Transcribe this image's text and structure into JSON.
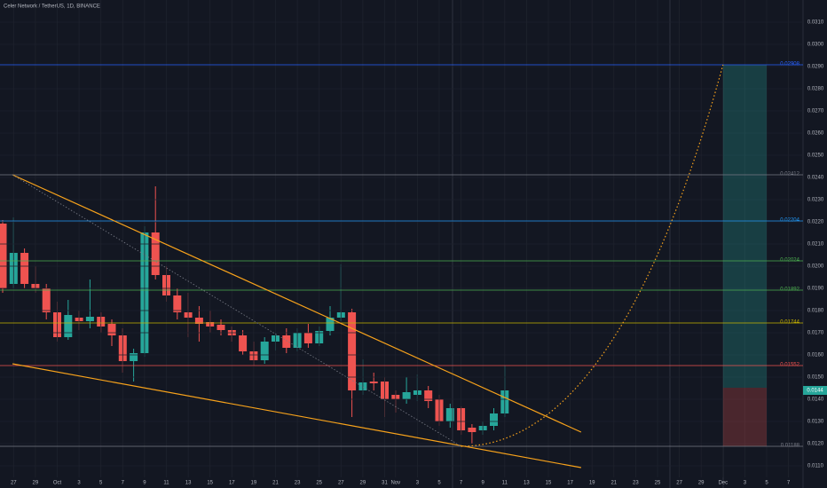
{
  "chart_data": {
    "type": "candlestick",
    "title": "Celer Network / TetherUS, 1D, BINANCE",
    "categories": [
      null,
      "27",
      null,
      "29",
      null,
      "Oct",
      null,
      "3",
      null,
      "5",
      null,
      "7",
      null,
      "9",
      null,
      "11",
      null,
      "13",
      null,
      "15",
      null,
      "17",
      null,
      "19",
      null,
      "21",
      null,
      "23",
      null,
      "25",
      null,
      "27",
      null,
      "29",
      null,
      "31",
      "Nov",
      null,
      "3",
      null,
      "5",
      null,
      "7",
      null,
      "9",
      null,
      "11",
      null,
      "13",
      null,
      "15",
      null,
      "17",
      null,
      "19",
      null,
      "21",
      null,
      "23",
      null,
      "25",
      null,
      "27",
      null,
      "29",
      null,
      "Dec",
      null,
      "3",
      null,
      "5",
      null,
      "7",
      null
    ],
    "open": [
      0.02192,
      0.0192,
      0.0206,
      0.0192,
      0.019,
      0.01792,
      0.0168,
      0.01768,
      0.01752,
      0.01772,
      0.0174,
      0.01688,
      0.01572,
      0.01608,
      0.02152,
      0.0196,
      0.01868,
      0.01792,
      0.01768,
      0.01748,
      0.01736,
      0.01712,
      0.01688,
      0.01616,
      0.01576,
      0.0166,
      0.01688,
      0.01632,
      0.017,
      0.01652,
      0.01708,
      0.01768,
      0.01792,
      0.0144,
      0.0148,
      0.0148,
      0.0142,
      0.014,
      0.0142,
      0.0144,
      0.014,
      0.013,
      0.0136,
      0.01272,
      0.0126,
      0.0128,
      0.01336,
      null,
      null,
      null,
      null,
      null,
      null,
      null,
      null,
      null,
      null,
      null,
      null,
      null,
      null,
      null,
      null,
      null,
      null,
      null,
      null,
      null,
      null,
      null,
      null,
      null,
      null,
      null
    ],
    "high": [
      0.02208,
      0.0222,
      0.0208,
      0.02,
      0.0192,
      0.0184,
      0.01848,
      0.018,
      0.0194,
      0.01792,
      0.0176,
      0.0172,
      0.01628,
      0.0218,
      0.0236,
      0.02,
      0.019,
      0.0188,
      0.0182,
      0.018,
      0.0176,
      0.01728,
      0.01712,
      0.0166,
      0.0168,
      0.017,
      0.0172,
      0.0172,
      0.0174,
      0.01728,
      0.0182,
      0.02008,
      0.01808,
      0.0158,
      0.0152,
      0.015,
      0.0144,
      0.015,
      0.01512,
      0.0146,
      0.0142,
      0.0138,
      0.01368,
      0.01288,
      0.013,
      0.0136,
      0.01552,
      null,
      null,
      null,
      null,
      null,
      null,
      null,
      null,
      null,
      null,
      null,
      null,
      null,
      null,
      null,
      null,
      null,
      null,
      null,
      null,
      null,
      null,
      null,
      null,
      null,
      null,
      null
    ],
    "low": [
      0.0188,
      0.019,
      0.019,
      0.0188,
      0.0176,
      0.0166,
      0.01668,
      0.01712,
      0.0172,
      0.017,
      0.0164,
      0.0152,
      0.0148,
      0.01592,
      0.0194,
      0.0184,
      0.0176,
      0.0168,
      0.0166,
      0.017,
      0.01688,
      0.0166,
      0.016,
      0.01552,
      0.0156,
      0.0162,
      0.01608,
      0.01616,
      0.01632,
      0.0164,
      0.01688,
      0.01752,
      0.0132,
      0.0142,
      0.0144,
      0.0132,
      0.0134,
      0.0138,
      0.01392,
      0.0136,
      0.0128,
      0.01272,
      0.0124,
      0.012,
      0.0124,
      0.0126,
      0.0132,
      null,
      null,
      null,
      null,
      null,
      null,
      null,
      null,
      null,
      null,
      null,
      null,
      null,
      null,
      null,
      null,
      null,
      null,
      null,
      null,
      null,
      null,
      null,
      null,
      null,
      null,
      null
    ],
    "close": [
      0.019,
      0.0206,
      0.0192,
      0.019,
      0.01792,
      0.0168,
      0.0178,
      0.01752,
      0.01772,
      0.01728,
      0.01688,
      0.01572,
      0.01608,
      0.02152,
      0.0196,
      0.01868,
      0.01792,
      0.01768,
      0.0174,
      0.01728,
      0.01712,
      0.01688,
      0.01616,
      0.01576,
      0.0166,
      0.01688,
      0.01632,
      0.017,
      0.01652,
      0.01708,
      0.01768,
      0.01792,
      0.0144,
      0.01476,
      0.01472,
      0.014,
      0.014,
      0.01432,
      0.0144,
      0.01392,
      0.013,
      0.0136,
      0.0126,
      0.01252,
      0.0128,
      0.01336,
      0.0144,
      null,
      null,
      null,
      null,
      null,
      null,
      null,
      null,
      null,
      null,
      null,
      null,
      null,
      null,
      null,
      null,
      null,
      null,
      null,
      null,
      null,
      null,
      null,
      null,
      null,
      null,
      null
    ],
    "up_color": "#26a69a",
    "down_color": "#ef5350",
    "ylim": [
      0.01,
      0.032
    ],
    "yticks": [
      {
        "value": 0.011,
        "label": "0.0110"
      },
      {
        "value": 0.012,
        "label": "0.0120"
      },
      {
        "value": 0.013,
        "label": "0.0130"
      },
      {
        "value": 0.014,
        "label": "0.0140"
      },
      {
        "value": 0.015,
        "label": "0.0150"
      },
      {
        "value": 0.016,
        "label": "0.0160"
      },
      {
        "value": 0.017,
        "label": "0.0170"
      },
      {
        "value": 0.018,
        "label": "0.0180"
      },
      {
        "value": 0.019,
        "label": "0.0190"
      },
      {
        "value": 0.02,
        "label": "0.0200"
      },
      {
        "value": 0.021,
        "label": "0.0210"
      },
      {
        "value": 0.022,
        "label": "0.0220"
      },
      {
        "value": 0.023,
        "label": "0.0230"
      },
      {
        "value": 0.024,
        "label": "0.0240"
      },
      {
        "value": 0.025,
        "label": "0.0250"
      },
      {
        "value": 0.026,
        "label": "0.0260"
      },
      {
        "value": 0.027,
        "label": "0.0270"
      },
      {
        "value": 0.028,
        "label": "0.0280"
      },
      {
        "value": 0.029,
        "label": "0.0290"
      },
      {
        "value": 0.03,
        "label": "0.0300"
      },
      {
        "value": 0.031,
        "label": "0.0310"
      }
    ],
    "grid": true,
    "levels": [
      {
        "value": 0.02908,
        "color": "#2962ff"
      },
      {
        "value": 0.02412,
        "color": "#787b86"
      },
      {
        "value": 0.02204,
        "color": "#2196f3"
      },
      {
        "value": 0.02024,
        "color": "#4caf50"
      },
      {
        "value": 0.01892,
        "color": "#4caf50"
      },
      {
        "value": 0.01744,
        "color": "#c8b400"
      },
      {
        "value": 0.01552,
        "color": "#ef5350"
      },
      {
        "value": 0.01188,
        "color": "#787b86"
      }
    ],
    "trendlines": [
      {
        "x": [
          0.9,
          53
        ],
        "y": [
          0.02412,
          0.01252
        ],
        "color": "#f7a21b"
      },
      {
        "x": [
          0.9,
          53
        ],
        "y": [
          0.0156,
          0.01092
        ],
        "color": "#f7a21b"
      }
    ],
    "dotted_line": {
      "x": [
        0.9,
        42
      ],
      "y": [
        0.02412,
        0.01188
      ],
      "color": "#787b86"
    },
    "projection": {
      "x": [
        42,
        66
      ],
      "y": [
        0.01188,
        0.02908
      ],
      "color": "#f7a21b"
    },
    "position": {
      "x": [
        66,
        70
      ],
      "entry": 0.01452,
      "target": 0.02908,
      "stop": 0.01188
    }
  }
}
